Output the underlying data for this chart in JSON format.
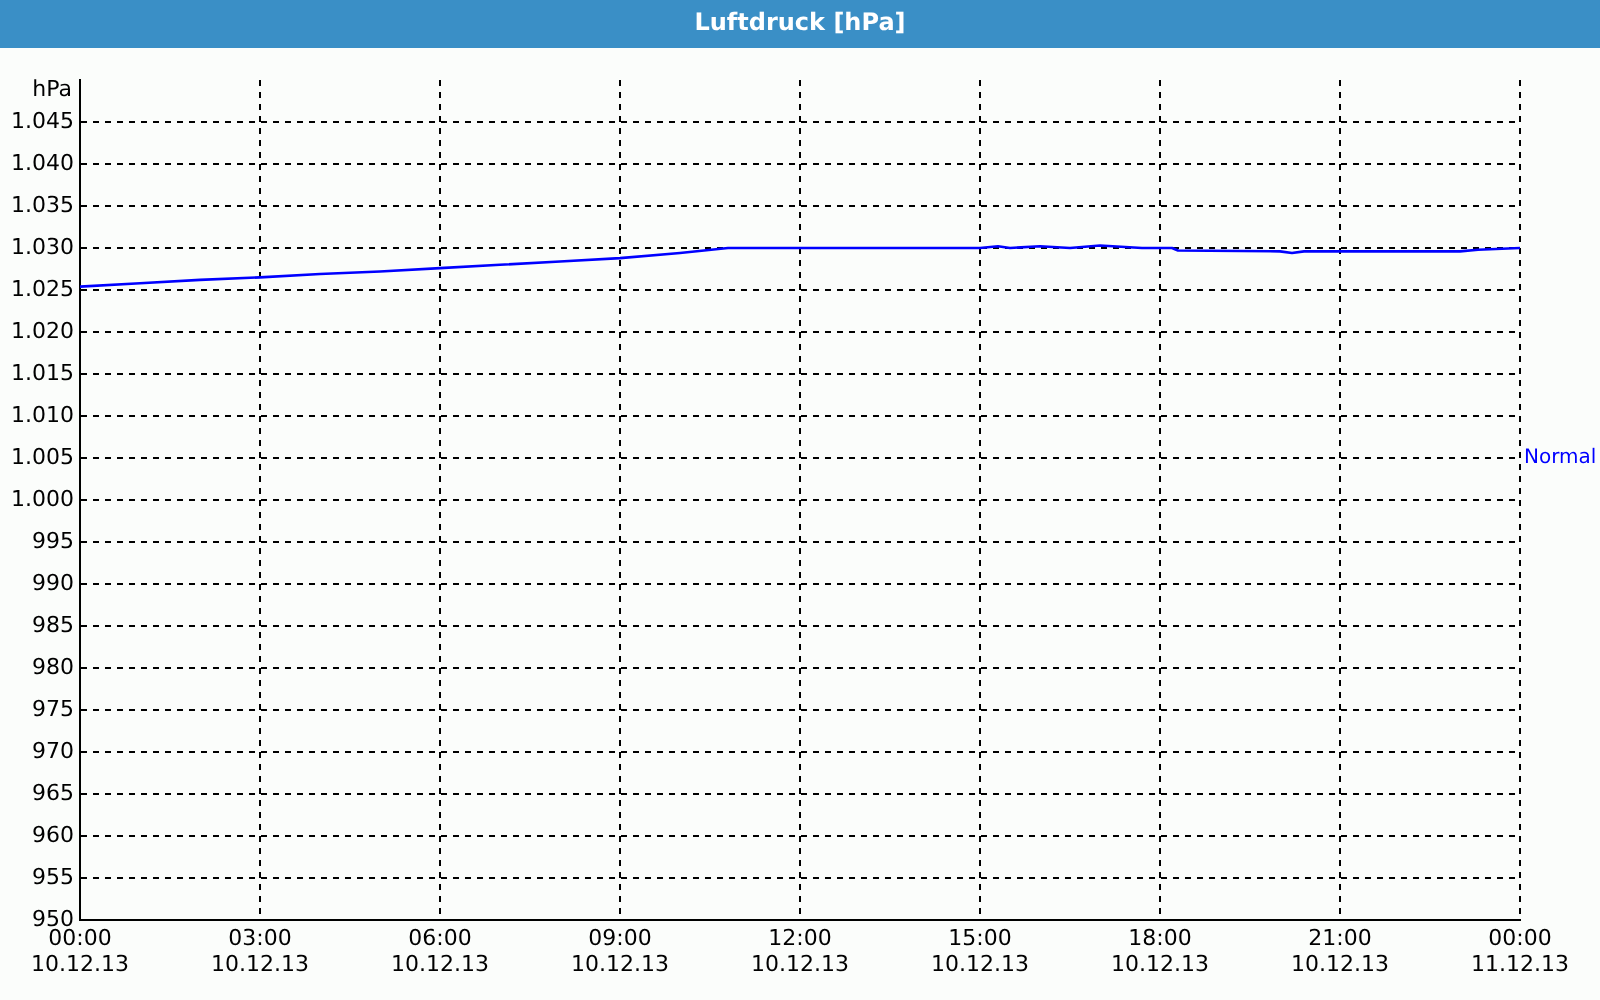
{
  "chart_data": {
    "type": "line",
    "title": "Luftdruck [hPa]",
    "ylabel": "hPa",
    "x": [
      "--12-10T00:00",
      "--12-10T01:00",
      "--12-10T02:00",
      "--12-10T03:00",
      "--12-10T04:00",
      "--12-10T05:00",
      "--12-10T06:00",
      "--12-10T07:00",
      "--12-10T08:00",
      "--12-10T09:00",
      "--12-10T10:00",
      "--12-10T10:48",
      "--12-10T12:00",
      "--12-10T15:00",
      "--12-10T15:18",
      "--12-10T15:30",
      "--12-10T16:00",
      "--12-10T16:30",
      "--12-10T17:00",
      "--12-10T17:42",
      "--12-10T18:12",
      "--12-10T18:18",
      "--12-10T20:00",
      "--12-10T20:12",
      "--12-10T20:24",
      "--12-10T22:00",
      "--12-10T23:00",
      "--12-10T23:18",
      "--12-11T00:00"
    ],
    "series": [
      {
        "name": "Normal",
        "color": "#0000ff",
        "values": [
          1025.4,
          1025.8,
          1026.2,
          1026.5,
          1026.9,
          1027.2,
          1027.6,
          1028.0,
          1028.4,
          1028.8,
          1029.4,
          1030,
          1030,
          1030,
          1030.2,
          1030,
          1030.2,
          1030,
          1030.3,
          1030,
          1030,
          1029.7,
          1029.6,
          1029.4,
          1029.6,
          1029.6,
          1029.6,
          1029.8,
          1030
        ]
      }
    ],
    "xlim": [
      "--12-10T00:00",
      "--12-11T00:00"
    ],
    "xticks": [
      {
        "value": "--12-10T00:00",
        "label": "00:00 10.12.13"
      },
      {
        "value": "--12-10T03:00",
        "label": "03:00 10.12.13"
      },
      {
        "value": "--12-10T06:00",
        "label": "06:00 10.12.13"
      },
      {
        "value": "--12-10T09:00",
        "label": "09:00 10.12.13"
      },
      {
        "value": "--12-10T12:00",
        "label": "12:00 10.12.13"
      },
      {
        "value": "--12-10T15:00",
        "label": "15:00 10.12.13"
      },
      {
        "value": "--12-10T18:00",
        "label": "18:00 10.12.13"
      },
      {
        "value": "--12-10T21:00",
        "label": "21:00 10.12.13"
      },
      {
        "value": "--12-11T00:00",
        "label": "00:00 11.12.13"
      }
    ],
    "ylim": [
      950,
      1050
    ],
    "yticks": [
      950,
      955,
      960,
      965,
      970,
      975,
      980,
      985,
      990,
      995,
      {
        "value": 1000,
        "label": "1.000"
      },
      {
        "value": 1005,
        "label": "1.005"
      },
      {
        "value": 1010,
        "label": "1.010"
      },
      {
        "value": 1015,
        "label": "1.015"
      },
      {
        "value": 1020,
        "label": "1.020"
      },
      {
        "value": 1025,
        "label": "1.025"
      },
      {
        "value": 1030,
        "label": "1.030"
      },
      {
        "value": 1035,
        "label": "1.035"
      },
      {
        "value": 1040,
        "label": "1.040"
      },
      {
        "value": 1045,
        "label": "1.045"
      }
    ],
    "grid": true,
    "legend": "right",
    "marker": "none",
    "line_style": "solid"
  }
}
